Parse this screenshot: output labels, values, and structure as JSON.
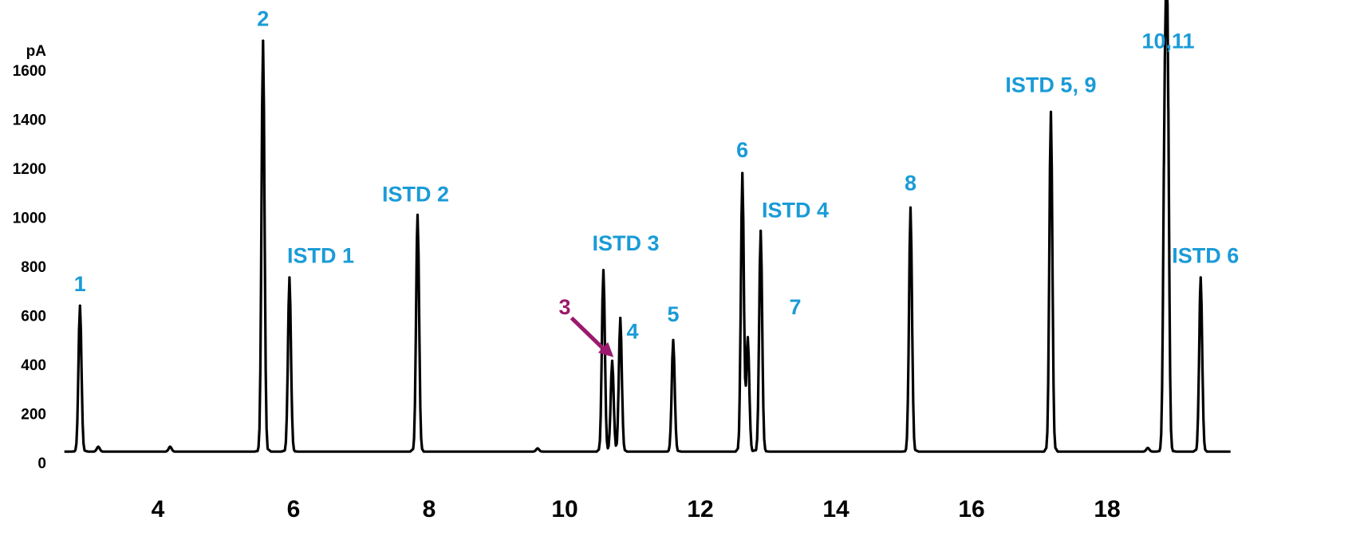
{
  "chart_data": {
    "type": "line",
    "title": "",
    "xlabel": "",
    "ylabel": "pA",
    "xlim": [
      2.0,
      20.0
    ],
    "ylim": [
      0,
      1700
    ],
    "x_ticks": [
      "4",
      "6",
      "8",
      "10",
      "12",
      "14",
      "16",
      "18"
    ],
    "y_ticks": [
      "0",
      "200",
      "400",
      "600",
      "800",
      "1000",
      "1200",
      "1400",
      "1600"
    ],
    "grid": false,
    "legend": "none",
    "baseline": 45,
    "series": [
      {
        "color": "#000000",
        "peaks": [
          {
            "rt": 2.85,
            "height": 640
          },
          {
            "rt": 3.12,
            "height": 65
          },
          {
            "rt": 4.18,
            "height": 65
          },
          {
            "rt": 5.55,
            "height": 1720
          },
          {
            "rt": 5.94,
            "height": 755
          },
          {
            "rt": 7.83,
            "height": 1010
          },
          {
            "rt": 9.6,
            "height": 58
          },
          {
            "rt": 10.57,
            "height": 785
          },
          {
            "rt": 10.7,
            "height": 415
          },
          {
            "rt": 10.82,
            "height": 590
          },
          {
            "rt": 11.6,
            "height": 500
          },
          {
            "rt": 12.62,
            "height": 1180
          },
          {
            "rt": 12.7,
            "height": 510
          },
          {
            "rt": 12.89,
            "height": 945
          },
          {
            "rt": 15.1,
            "height": 1040
          },
          {
            "rt": 17.17,
            "height": 1430
          },
          {
            "rt": 18.6,
            "height": 60
          },
          {
            "rt": 18.85,
            "height": 1330
          },
          {
            "rt": 18.89,
            "height": 1620
          },
          {
            "rt": 19.38,
            "height": 755
          }
        ]
      }
    ],
    "peak_labels": [
      {
        "text": "1",
        "rt": 2.85,
        "y": 700,
        "color": "#1a9bd7"
      },
      {
        "text": "2",
        "rt": 5.55,
        "y": 1780,
        "color": "#1a9bd7"
      },
      {
        "text": "ISTD 1",
        "rt": 6.4,
        "y": 815,
        "color": "#1a9bd7"
      },
      {
        "text": "ISTD 2",
        "rt": 7.8,
        "y": 1065,
        "color": "#1a9bd7"
      },
      {
        "text": "ISTD 3",
        "rt": 10.9,
        "y": 865,
        "color": "#1a9bd7"
      },
      {
        "text": "3",
        "rt": 10.0,
        "y": 605,
        "color": "#9b1a6e"
      },
      {
        "text": "4",
        "rt": 11.0,
        "y": 505,
        "color": "#1a9bd7"
      },
      {
        "text": "5",
        "rt": 11.6,
        "y": 575,
        "color": "#1a9bd7"
      },
      {
        "text": "6",
        "rt": 12.62,
        "y": 1245,
        "color": "#1a9bd7"
      },
      {
        "text": "ISTD 4",
        "rt": 13.4,
        "y": 1000,
        "color": "#1a9bd7"
      },
      {
        "text": "7",
        "rt": 13.4,
        "y": 605,
        "color": "#1a9bd7"
      },
      {
        "text": "8",
        "rt": 15.1,
        "y": 1110,
        "color": "#1a9bd7"
      },
      {
        "text": "ISTD 5, 9",
        "rt": 17.17,
        "y": 1510,
        "color": "#1a9bd7"
      },
      {
        "text": "10,11",
        "rt": 18.9,
        "y": 1690,
        "color": "#1a9bd7"
      },
      {
        "text": "ISTD 6",
        "rt": 19.45,
        "y": 815,
        "color": "#1a9bd7"
      }
    ],
    "arrow": {
      "from_rt": 10.1,
      "from_y": 590,
      "to_rt": 10.72,
      "to_y": 430,
      "color": "#9b1a6e"
    }
  }
}
